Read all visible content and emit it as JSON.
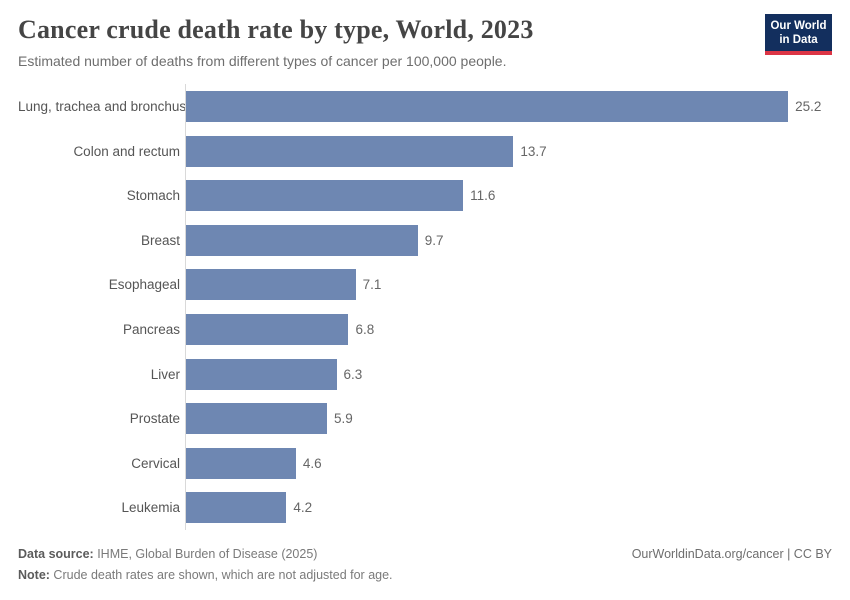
{
  "header": {
    "title": "Cancer crude death rate by type, World, 2023",
    "subtitle": "Estimated number of deaths from different types of cancer per 100,000 people.",
    "logo": {
      "line1": "Our World",
      "line2": "in Data",
      "bg_color": "#132f5e",
      "accent_color": "#dc3545"
    }
  },
  "chart_data": {
    "type": "bar",
    "orientation": "horizontal",
    "title": "Cancer crude death rate by type, World, 2023",
    "subtitle": "Estimated number of deaths from different types of cancer per 100,000 people.",
    "xlabel": "",
    "ylabel": "",
    "xlim": [
      0,
      25.2
    ],
    "grid": false,
    "legend": "none",
    "bar_color": "#6e87b2",
    "axis_color": "#d9d9d9",
    "categories": [
      "Lung, trachea and bronchus",
      "Colon and rectum",
      "Stomach",
      "Breast",
      "Esophageal",
      "Pancreas",
      "Liver",
      "Prostate",
      "Cervical",
      "Leukemia"
    ],
    "values": [
      25.2,
      13.7,
      11.6,
      9.7,
      7.1,
      6.8,
      6.3,
      5.9,
      4.6,
      4.2
    ]
  },
  "footer": {
    "datasource_label": "Data source:",
    "datasource_text": " IHME, Global Burden of Disease (2025)",
    "note_label": "Note:",
    "note_text": " Crude death rates are shown, which are not adjusted for age.",
    "rights": "OurWorldinData.org/cancer | CC BY"
  }
}
